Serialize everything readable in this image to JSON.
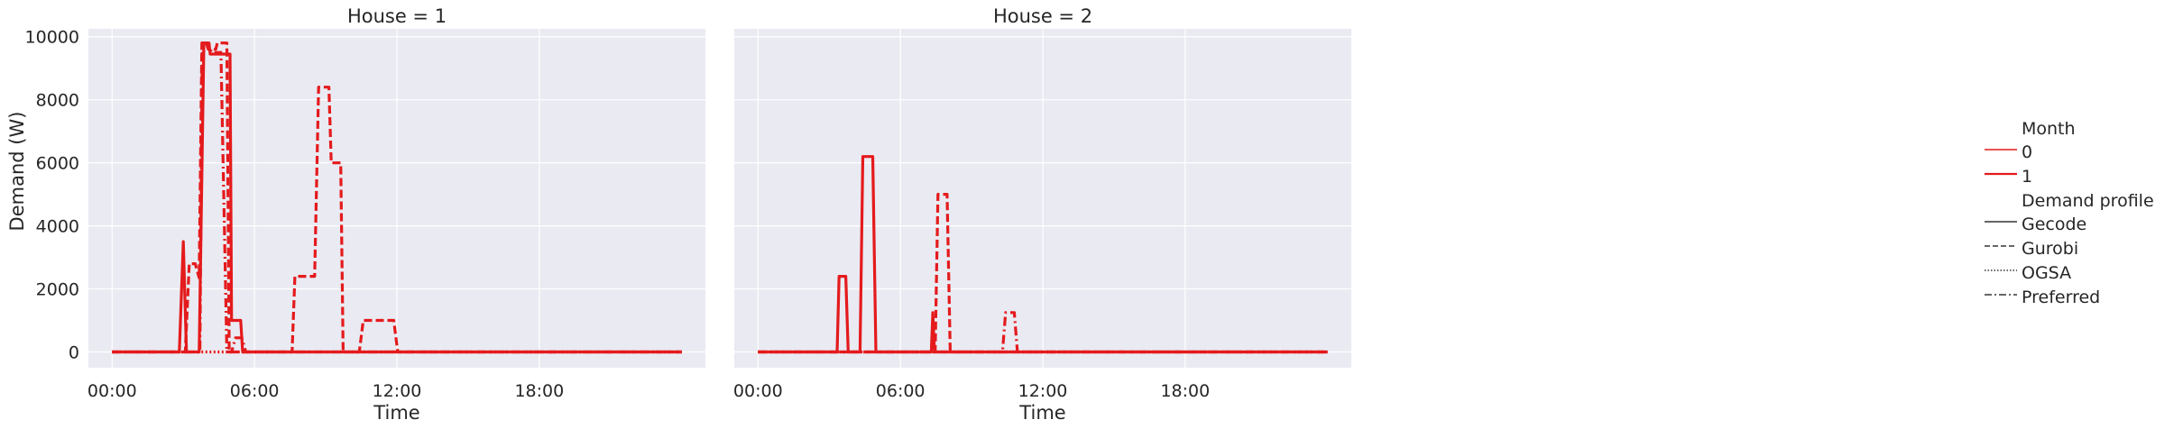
{
  "chart_data": {
    "type": "line",
    "ylabel": "Demand (W)",
    "ylim": [
      -500,
      10250
    ],
    "xlim": [
      -60,
      1500
    ],
    "x_ticks": [
      0,
      360,
      720,
      1080
    ],
    "x_tick_labels": [
      "00:00",
      "06:00",
      "12:00",
      "18:00"
    ],
    "y_ticks": [
      0,
      2000,
      4000,
      6000,
      8000,
      10000
    ],
    "y_tick_labels": [
      "0",
      "2000",
      "4000",
      "6000",
      "8000",
      "10000"
    ],
    "grid": true,
    "legend_position": "right",
    "facets": [
      {
        "title": "House = 1",
        "xlabel": "Time",
        "series": [
          {
            "name": "Gecode",
            "style": "solid",
            "points": [
              [
                0,
                0
              ],
              [
                170,
                0
              ],
              [
                180,
                3500
              ],
              [
                188,
                0
              ],
              [
                220,
                0
              ],
              [
                232,
                9800
              ],
              [
                245,
                9800
              ],
              [
                248,
                9450
              ],
              [
                298,
                9450
              ],
              [
                302,
                1000
              ],
              [
                325,
                1000
              ],
              [
                330,
                0
              ],
              [
                1440,
                0
              ]
            ]
          },
          {
            "name": "Gurobi",
            "style": "dashed",
            "points": [
              [
                0,
                0
              ],
              [
                185,
                0
              ],
              [
                195,
                2800
              ],
              [
                210,
                2800
              ],
              [
                220,
                2350
              ],
              [
                227,
                9800
              ],
              [
                238,
                9800
              ],
              [
                243,
                9600
              ],
              [
                262,
                9600
              ],
              [
                266,
                9800
              ],
              [
                290,
                9800
              ],
              [
                296,
                0
              ],
              [
                455,
                0
              ],
              [
                462,
                2400
              ],
              [
                512,
                2400
              ],
              [
                522,
                8400
              ],
              [
                548,
                8400
              ],
              [
                554,
                6000
              ],
              [
                578,
                6000
              ],
              [
                584,
                0
              ],
              [
                625,
                0
              ],
              [
                635,
                1000
              ],
              [
                712,
                1000
              ],
              [
                722,
                0
              ],
              [
                1440,
                0
              ]
            ]
          },
          {
            "name": "OGSA",
            "style": "dotted",
            "points": [
              [
                0,
                0
              ],
              [
                1440,
                0
              ]
            ]
          },
          {
            "name": "Preferred",
            "style": "dashdot",
            "points": [
              [
                0,
                0
              ],
              [
                222,
                0
              ],
              [
                228,
                9800
              ],
              [
                240,
                9800
              ],
              [
                252,
                9500
              ],
              [
                275,
                9500
              ],
              [
                290,
                0
              ],
              [
                302,
                0
              ],
              [
                312,
                450
              ],
              [
                328,
                450
              ],
              [
                338,
                0
              ],
              [
                1440,
                0
              ]
            ]
          }
        ]
      },
      {
        "title": "House = 2",
        "xlabel": "Time",
        "series": [
          {
            "name": "Gecode",
            "style": "solid",
            "points": [
              [
                0,
                0
              ],
              [
                200,
                0
              ],
              [
                205,
                2400
              ],
              [
                222,
                2400
              ],
              [
                228,
                0
              ],
              [
                258,
                0
              ],
              [
                265,
                6200
              ],
              [
                290,
                6200
              ],
              [
                298,
                0
              ],
              [
                438,
                0
              ],
              [
                442,
                1250
              ],
              [
                446,
                0
              ],
              [
                1440,
                0
              ]
            ]
          },
          {
            "name": "Gurobi",
            "style": "dashed",
            "points": [
              [
                0,
                0
              ],
              [
                448,
                0
              ],
              [
                455,
                5000
              ],
              [
                478,
                5000
              ],
              [
                486,
                0
              ],
              [
                1440,
                0
              ]
            ]
          },
          {
            "name": "OGSA",
            "style": "dotted",
            "points": [
              [
                0,
                0
              ],
              [
                1440,
                0
              ]
            ]
          },
          {
            "name": "Preferred",
            "style": "dashdot",
            "points": [
              [
                0,
                0
              ],
              [
                618,
                0
              ],
              [
                626,
                1250
              ],
              [
                648,
                1250
              ],
              [
                656,
                0
              ],
              [
                1440,
                0
              ]
            ]
          }
        ]
      }
    ],
    "legend": {
      "month_title": "Month",
      "months": [
        "0",
        "1"
      ],
      "profile_title": "Demand profile",
      "profiles": [
        "Gecode",
        "Gurobi",
        "OGSA",
        "Preferred"
      ]
    },
    "line_color": "#e41a1c",
    "background_color": "#eaeaf2"
  }
}
